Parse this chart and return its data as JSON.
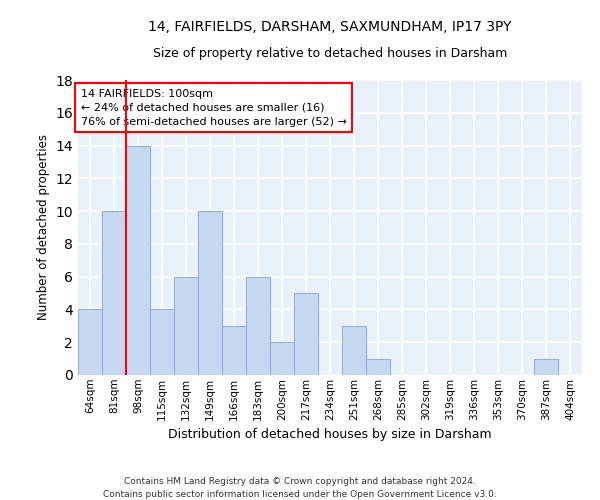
{
  "title1": "14, FAIRFIELDS, DARSHAM, SAXMUNDHAM, IP17 3PY",
  "title2": "Size of property relative to detached houses in Darsham",
  "xlabel": "Distribution of detached houses by size in Darsham",
  "ylabel": "Number of detached properties",
  "categories": [
    "64sqm",
    "81sqm",
    "98sqm",
    "115sqm",
    "132sqm",
    "149sqm",
    "166sqm",
    "183sqm",
    "200sqm",
    "217sqm",
    "234sqm",
    "251sqm",
    "268sqm",
    "285sqm",
    "302sqm",
    "319sqm",
    "336sqm",
    "353sqm",
    "370sqm",
    "387sqm",
    "404sqm"
  ],
  "values": [
    4,
    10,
    14,
    4,
    6,
    10,
    3,
    6,
    2,
    5,
    0,
    3,
    1,
    0,
    0,
    0,
    0,
    0,
    0,
    1,
    0
  ],
  "bar_color": "#c5d8f0",
  "bar_edge_color": "#8ab4d8",
  "bg_color": "#e8f0fa",
  "grid_color": "#ffffff",
  "annotation_line1": "14 FAIRFIELDS: 100sqm",
  "annotation_line2": "← 24% of detached houses are smaller (16)",
  "annotation_line3": "76% of semi-detached houses are larger (52) →",
  "footnote_line1": "Contains HM Land Registry data © Crown copyright and database right 2024.",
  "footnote_line2": "Contains public sector information licensed under the Open Government Licence v3.0.",
  "ylim": [
    0,
    18
  ],
  "yticks": [
    0,
    2,
    4,
    6,
    8,
    10,
    12,
    14,
    16,
    18
  ],
  "red_line_index": 2
}
